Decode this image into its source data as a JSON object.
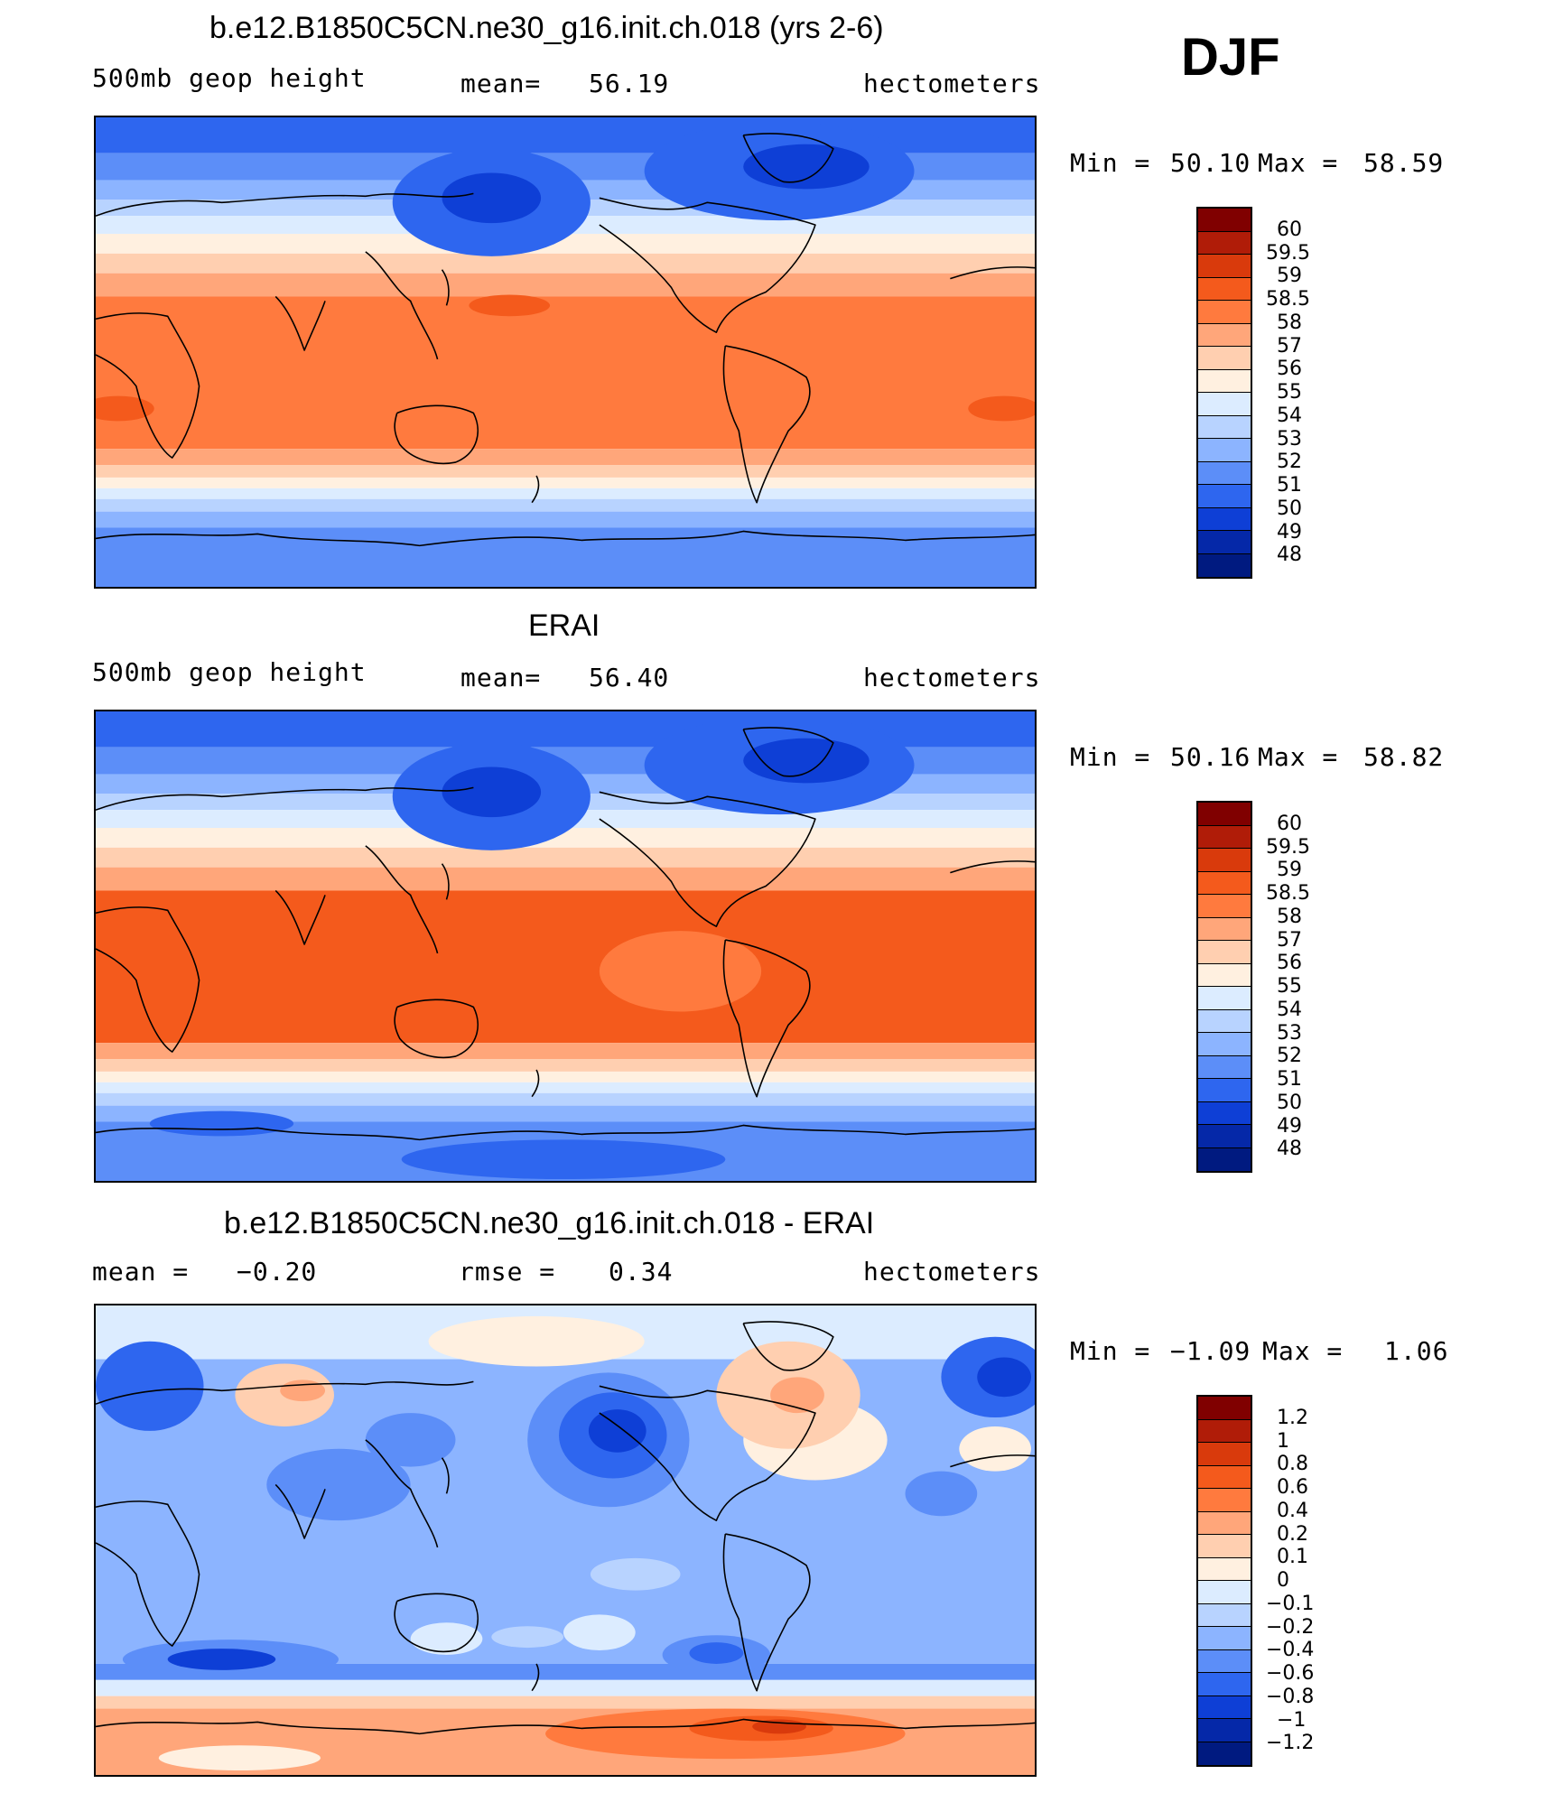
{
  "season": "DJF",
  "chart_data": [
    {
      "type": "heatmap",
      "title": "b.e12.B1850C5CN.ne30_g16.init.ch.018 (yrs 2-6)",
      "left_label": "500mb  geop  height",
      "stat_label": "mean=",
      "stat_value": "56.19",
      "units": "hectometers",
      "min_label": "Min =",
      "min_value": "50.10",
      "max_label": "Max =",
      "max_value": "58.59",
      "projection": "cylindrical equidistant, Pacific-centered",
      "colorbar": {
        "labels": [
          "60",
          "59.5",
          "59",
          "58.5",
          "58",
          "57",
          "56",
          "55",
          "54",
          "53",
          "52",
          "51",
          "50",
          "49",
          "48"
        ],
        "colors": [
          "#800000",
          "#b01c08",
          "#d93a0c",
          "#f45a1c",
          "#ff7a3e",
          "#ffa67a",
          "#ffcfb0",
          "#fff0e0",
          "#dcecff",
          "#b8d3ff",
          "#8cb4ff",
          "#5c8ef8",
          "#2e66ef",
          "#0e3fd6",
          "#0528a8",
          "#001a80"
        ]
      }
    },
    {
      "type": "heatmap",
      "title": "ERAI",
      "left_label": "500mb  geop  height",
      "stat_label": "mean=",
      "stat_value": "56.40",
      "units": "hectometers",
      "min_label": "Min =",
      "min_value": "50.16",
      "max_label": "Max =",
      "max_value": "58.82",
      "projection": "cylindrical equidistant, Pacific-centered",
      "colorbar": {
        "labels": [
          "60",
          "59.5",
          "59",
          "58.5",
          "58",
          "57",
          "56",
          "55",
          "54",
          "53",
          "52",
          "51",
          "50",
          "49",
          "48"
        ],
        "colors": [
          "#800000",
          "#b01c08",
          "#d93a0c",
          "#f45a1c",
          "#ff7a3e",
          "#ffa67a",
          "#ffcfb0",
          "#fff0e0",
          "#dcecff",
          "#b8d3ff",
          "#8cb4ff",
          "#5c8ef8",
          "#2e66ef",
          "#0e3fd6",
          "#0528a8",
          "#001a80"
        ]
      }
    },
    {
      "type": "heatmap",
      "title": "b.e12.B1850C5CN.ne30_g16.init.ch.018 - ERAI",
      "left_label": "mean =",
      "left_value": "−0.20",
      "stat_label": "rmse =",
      "stat_value": "0.34",
      "units": "hectometers",
      "min_label": "Min =",
      "min_value": "−1.09",
      "max_label": "Max =",
      "max_value": "1.06",
      "projection": "cylindrical equidistant, Pacific-centered",
      "colorbar": {
        "labels": [
          "1.2",
          "1",
          "0.8",
          "0.6",
          "0.4",
          "0.2",
          "0.1",
          "0",
          "−0.1",
          "−0.2",
          "−0.4",
          "−0.6",
          "−0.8",
          "−1",
          "−1.2"
        ],
        "colors": [
          "#800000",
          "#b01c08",
          "#d93a0c",
          "#f45a1c",
          "#ff7a3e",
          "#ffa67a",
          "#ffcfb0",
          "#fff0e0",
          "#dcecff",
          "#b8d3ff",
          "#8cb4ff",
          "#5c8ef8",
          "#2e66ef",
          "#0e3fd6",
          "#0528a8",
          "#001a80"
        ]
      }
    }
  ]
}
